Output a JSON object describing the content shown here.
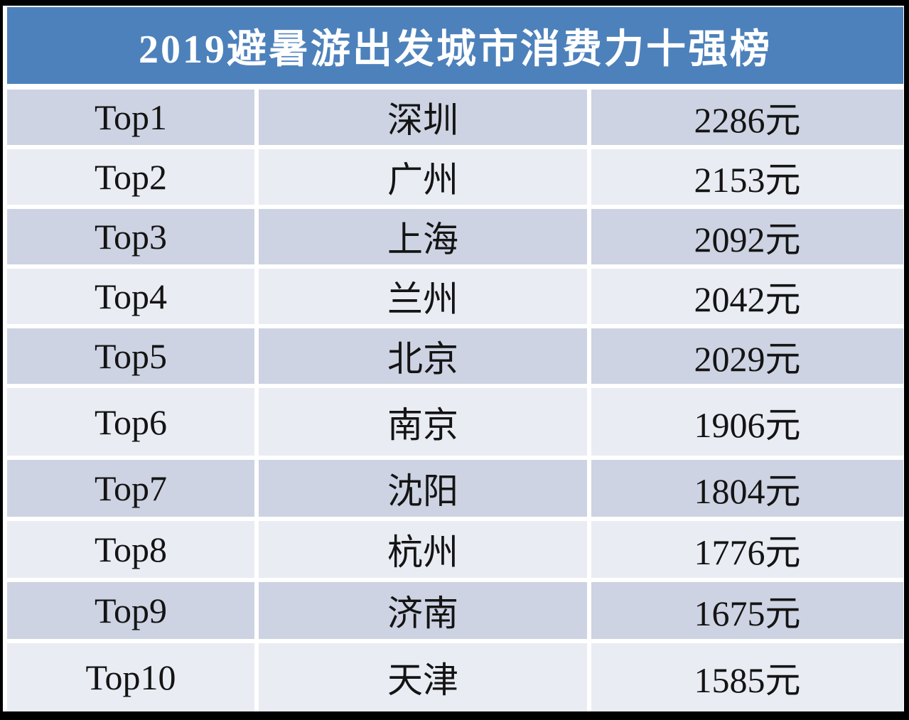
{
  "title": "2019避暑游出发城市消费力十强榜",
  "table": {
    "rows": [
      {
        "rank": "Top1",
        "city": "深圳",
        "price": "2286元"
      },
      {
        "rank": "Top2",
        "city": "广州",
        "price": "2153元"
      },
      {
        "rank": "Top3",
        "city": "上海",
        "price": "2092元"
      },
      {
        "rank": "Top4",
        "city": "兰州",
        "price": "2042元"
      },
      {
        "rank": "Top5",
        "city": "北京",
        "price": "2029元"
      },
      {
        "rank": "Top6",
        "city": "南京",
        "price": "1906元"
      },
      {
        "rank": "Top7",
        "city": "沈阳",
        "price": "1804元"
      },
      {
        "rank": "Top8",
        "city": "杭州",
        "price": "1776元"
      },
      {
        "rank": "Top9",
        "city": "济南",
        "price": "1675元"
      },
      {
        "rank": "Top10",
        "city": "天津",
        "price": "1585元"
      }
    ]
  },
  "colors": {
    "header_bg": "#4d81bb",
    "row_dark_bg": "#cdd3e2",
    "row_light_bg": "#e9ecf3",
    "header_text": "#ffffff",
    "cell_text": "#141414",
    "frame": "#000000",
    "separator": "#ffffff"
  },
  "chart_data": {
    "type": "table",
    "title": "2019避暑游出发城市消费力十强榜",
    "ranks": [
      "Top1",
      "Top2",
      "Top3",
      "Top4",
      "Top5",
      "Top6",
      "Top7",
      "Top8",
      "Top9",
      "Top10"
    ],
    "categories": [
      "深圳",
      "广州",
      "上海",
      "兰州",
      "北京",
      "南京",
      "沈阳",
      "杭州",
      "济南",
      "天津"
    ],
    "values": [
      2286,
      2153,
      2092,
      2042,
      2029,
      1906,
      1804,
      1776,
      1675,
      1585
    ],
    "unit": "元"
  }
}
